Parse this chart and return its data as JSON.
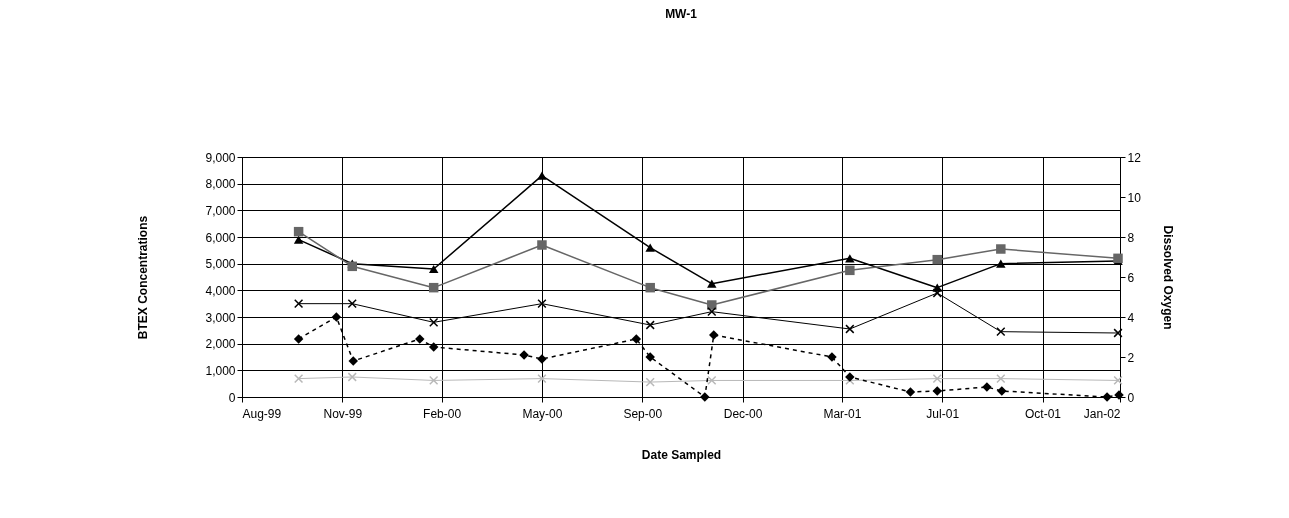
{
  "chart_data": {
    "type": "line",
    "title": "MW-1",
    "xlabel": "Date Sampled",
    "ylabel": "BTEX Concentrations",
    "y2label": "Dissolved Oxygen",
    "xlim": [
      "1999-08-01",
      "2002-01-01"
    ],
    "xticks": [
      {
        "value": "1999-08-01",
        "label": "Aug-99"
      },
      {
        "value": "1999-11-10",
        "label": "Nov-99"
      },
      {
        "value": "2000-02-18",
        "label": "Feb-00"
      },
      {
        "value": "2000-05-29",
        "label": "May-00"
      },
      {
        "value": "2000-09-07",
        "label": "Sep-00"
      },
      {
        "value": "2000-12-17",
        "label": "Dec-00"
      },
      {
        "value": "2001-03-27",
        "label": "Mar-01"
      },
      {
        "value": "2001-07-06",
        "label": "Jul-01"
      },
      {
        "value": "2001-10-15",
        "label": "Oct-01"
      },
      {
        "value": "2002-01-01",
        "label": "Jan-02"
      }
    ],
    "ylim": [
      0,
      9000
    ],
    "yticks": [
      0,
      {
        "value": 1000,
        "label": "1,000"
      },
      {
        "value": 2000,
        "label": "2,000"
      },
      {
        "value": 3000,
        "label": "3,000"
      },
      {
        "value": 4000,
        "label": "4,000"
      },
      {
        "value": 5000,
        "label": "5,000"
      },
      {
        "value": 6000,
        "label": "6,000"
      },
      {
        "value": 7000,
        "label": "7,000"
      },
      {
        "value": 8000,
        "label": "8,000"
      },
      {
        "value": 9000,
        "label": "9,000"
      }
    ],
    "y2lim": [
      0,
      12
    ],
    "y2ticks": [
      0,
      2,
      4,
      6,
      8,
      10,
      12
    ],
    "grid": true,
    "series": [
      {
        "color": "#000000",
        "marker": "triangle",
        "line_style": "solid",
        "x": [
          "1999-09-27",
          "1999-11-20",
          "2000-02-10",
          "2000-05-29",
          "2000-09-15",
          "2000-11-16",
          "2001-04-04",
          "2001-07-01",
          "2001-09-03",
          "2001-12-30"
        ],
        "values": [
          5900,
          5000,
          4800,
          8300,
          5600,
          4250,
          5200,
          4100,
          5000,
          5100
        ]
      },
      {
        "color": "#666666",
        "marker": "square",
        "line_style": "solid",
        "x": [
          "1999-09-27",
          "1999-11-20",
          "2000-02-10",
          "2000-05-29",
          "2000-09-15",
          "2000-11-16",
          "2001-04-04",
          "2001-07-01",
          "2001-09-03",
          "2001-12-30"
        ],
        "values": [
          6200,
          4900,
          4100,
          5700,
          4100,
          3450,
          4750,
          5150,
          5550,
          5200
        ]
      },
      {
        "color": "#000000",
        "marker": "cross",
        "line_style": "solid",
        "x": [
          "1999-09-27",
          "1999-11-20",
          "2000-02-10",
          "2000-05-29",
          "2000-09-15",
          "2000-11-16",
          "2001-04-04",
          "2001-07-01",
          "2001-09-03",
          "2001-12-30"
        ],
        "values": [
          3500,
          3500,
          2800,
          3500,
          2700,
          3200,
          2550,
          3900,
          2450,
          2400
        ]
      },
      {
        "color": "#b8b8b8",
        "marker": "cross",
        "line_style": "solid",
        "x": [
          "1999-09-27",
          "1999-11-20",
          "2000-02-10",
          "2000-05-29",
          "2000-09-15",
          "2000-11-16",
          "2001-04-04",
          "2001-07-01",
          "2001-09-03",
          "2001-12-30"
        ],
        "values": [
          690,
          750,
          620,
          690,
          560,
          620,
          620,
          690,
          690,
          620
        ]
      },
      {
        "color": "#000000",
        "marker": "diamond",
        "line_style": "dashed",
        "axis": "y2",
        "x": [
          "1999-09-27",
          "1999-11-04",
          "1999-11-21",
          "2000-01-27",
          "2000-02-10",
          "2000-05-11",
          "2000-05-29",
          "2000-09-01",
          "2000-09-15",
          "2000-11-09",
          "2000-11-18",
          "2001-03-17",
          "2001-04-04",
          "2001-06-04",
          "2001-07-01",
          "2001-08-20",
          "2001-09-04",
          "2001-12-19",
          "2001-12-31"
        ],
        "values": [
          2.9,
          4.0,
          1.8,
          2.9,
          2.5,
          2.1,
          1.9,
          2.9,
          2.0,
          0,
          3.1,
          2.0,
          1.0,
          0.25,
          0.3,
          0.5,
          0.3,
          0,
          0.1
        ]
      }
    ]
  }
}
